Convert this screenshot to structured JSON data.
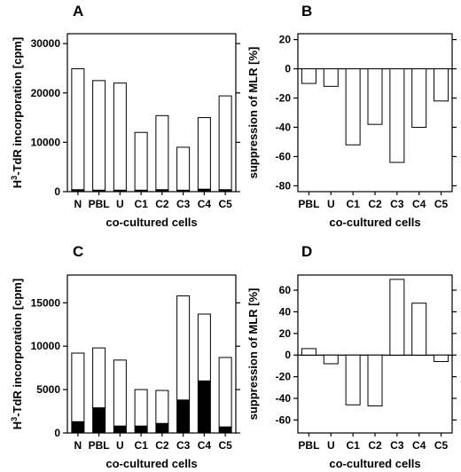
{
  "chart_data": [
    {
      "panel": "A",
      "type": "bar",
      "stacked": true,
      "categories": [
        "N",
        "PBL",
        "U",
        "C1",
        "C2",
        "C3",
        "C4",
        "C5"
      ],
      "series": [
        {
          "values": [
            400,
            300,
            300,
            300,
            400,
            300,
            500,
            400
          ],
          "color": "#000000"
        },
        {
          "values": [
            24500,
            22200,
            21700,
            11700,
            15000,
            8700,
            14500,
            19000
          ],
          "color": "#ffffff"
        }
      ],
      "ylim": [
        0,
        32000
      ],
      "yticks": [
        "0",
        "10000",
        "20000",
        "30000"
      ],
      "ytick_values": [
        0,
        10000,
        20000,
        30000
      ],
      "ylabel": "H³-TdR incorporation [cpm]",
      "xlabel": "co-cultured cells"
    },
    {
      "panel": "B",
      "type": "bar",
      "categories": [
        "PBL",
        "U",
        "C1",
        "C2",
        "C3",
        "C4",
        "C5"
      ],
      "values": [
        -10,
        -12,
        -52,
        -38,
        -64,
        -40,
        -22
      ],
      "ylim": [
        -84,
        24
      ],
      "yticks": [
        "-80",
        "-60",
        "-40",
        "-20",
        "0",
        "20"
      ],
      "ytick_values": [
        -80,
        -60,
        -40,
        -20,
        0,
        20
      ],
      "ylabel": "suppression of MLR [%]",
      "xlabel": "co-cultured cells"
    },
    {
      "panel": "C",
      "type": "bar",
      "stacked": true,
      "categories": [
        "N",
        "PBL",
        "U",
        "C1",
        "C2",
        "C3",
        "C4",
        "C5"
      ],
      "series": [
        {
          "values": [
            1300,
            2900,
            800,
            800,
            1100,
            3800,
            6000,
            700
          ],
          "color": "#000000"
        },
        {
          "values": [
            7900,
            6900,
            7600,
            4200,
            3800,
            12000,
            7700,
            8000
          ],
          "color": "#ffffff"
        }
      ],
      "ylim": [
        0,
        18200
      ],
      "yticks": [
        "0",
        "5000",
        "10000",
        "15000"
      ],
      "ytick_values": [
        0,
        5000,
        10000,
        15000
      ],
      "ylabel": "H³-TdR incorporation [cpm]",
      "xlabel": "co-cultured cells"
    },
    {
      "panel": "D",
      "type": "bar",
      "categories": [
        "PBL",
        "U",
        "C1",
        "C2",
        "C3",
        "C4",
        "C5"
      ],
      "values": [
        6,
        -8,
        -46,
        -47,
        70,
        48,
        -6
      ],
      "ylim": [
        -72,
        74
      ],
      "yticks": [
        "-60",
        "-40",
        "-20",
        "0",
        "20",
        "40",
        "60"
      ],
      "ytick_values": [
        -60,
        -40,
        -20,
        0,
        20,
        40,
        60
      ],
      "ylabel": "suppression of MLR [%]",
      "xlabel": "co-cultured cells"
    }
  ]
}
